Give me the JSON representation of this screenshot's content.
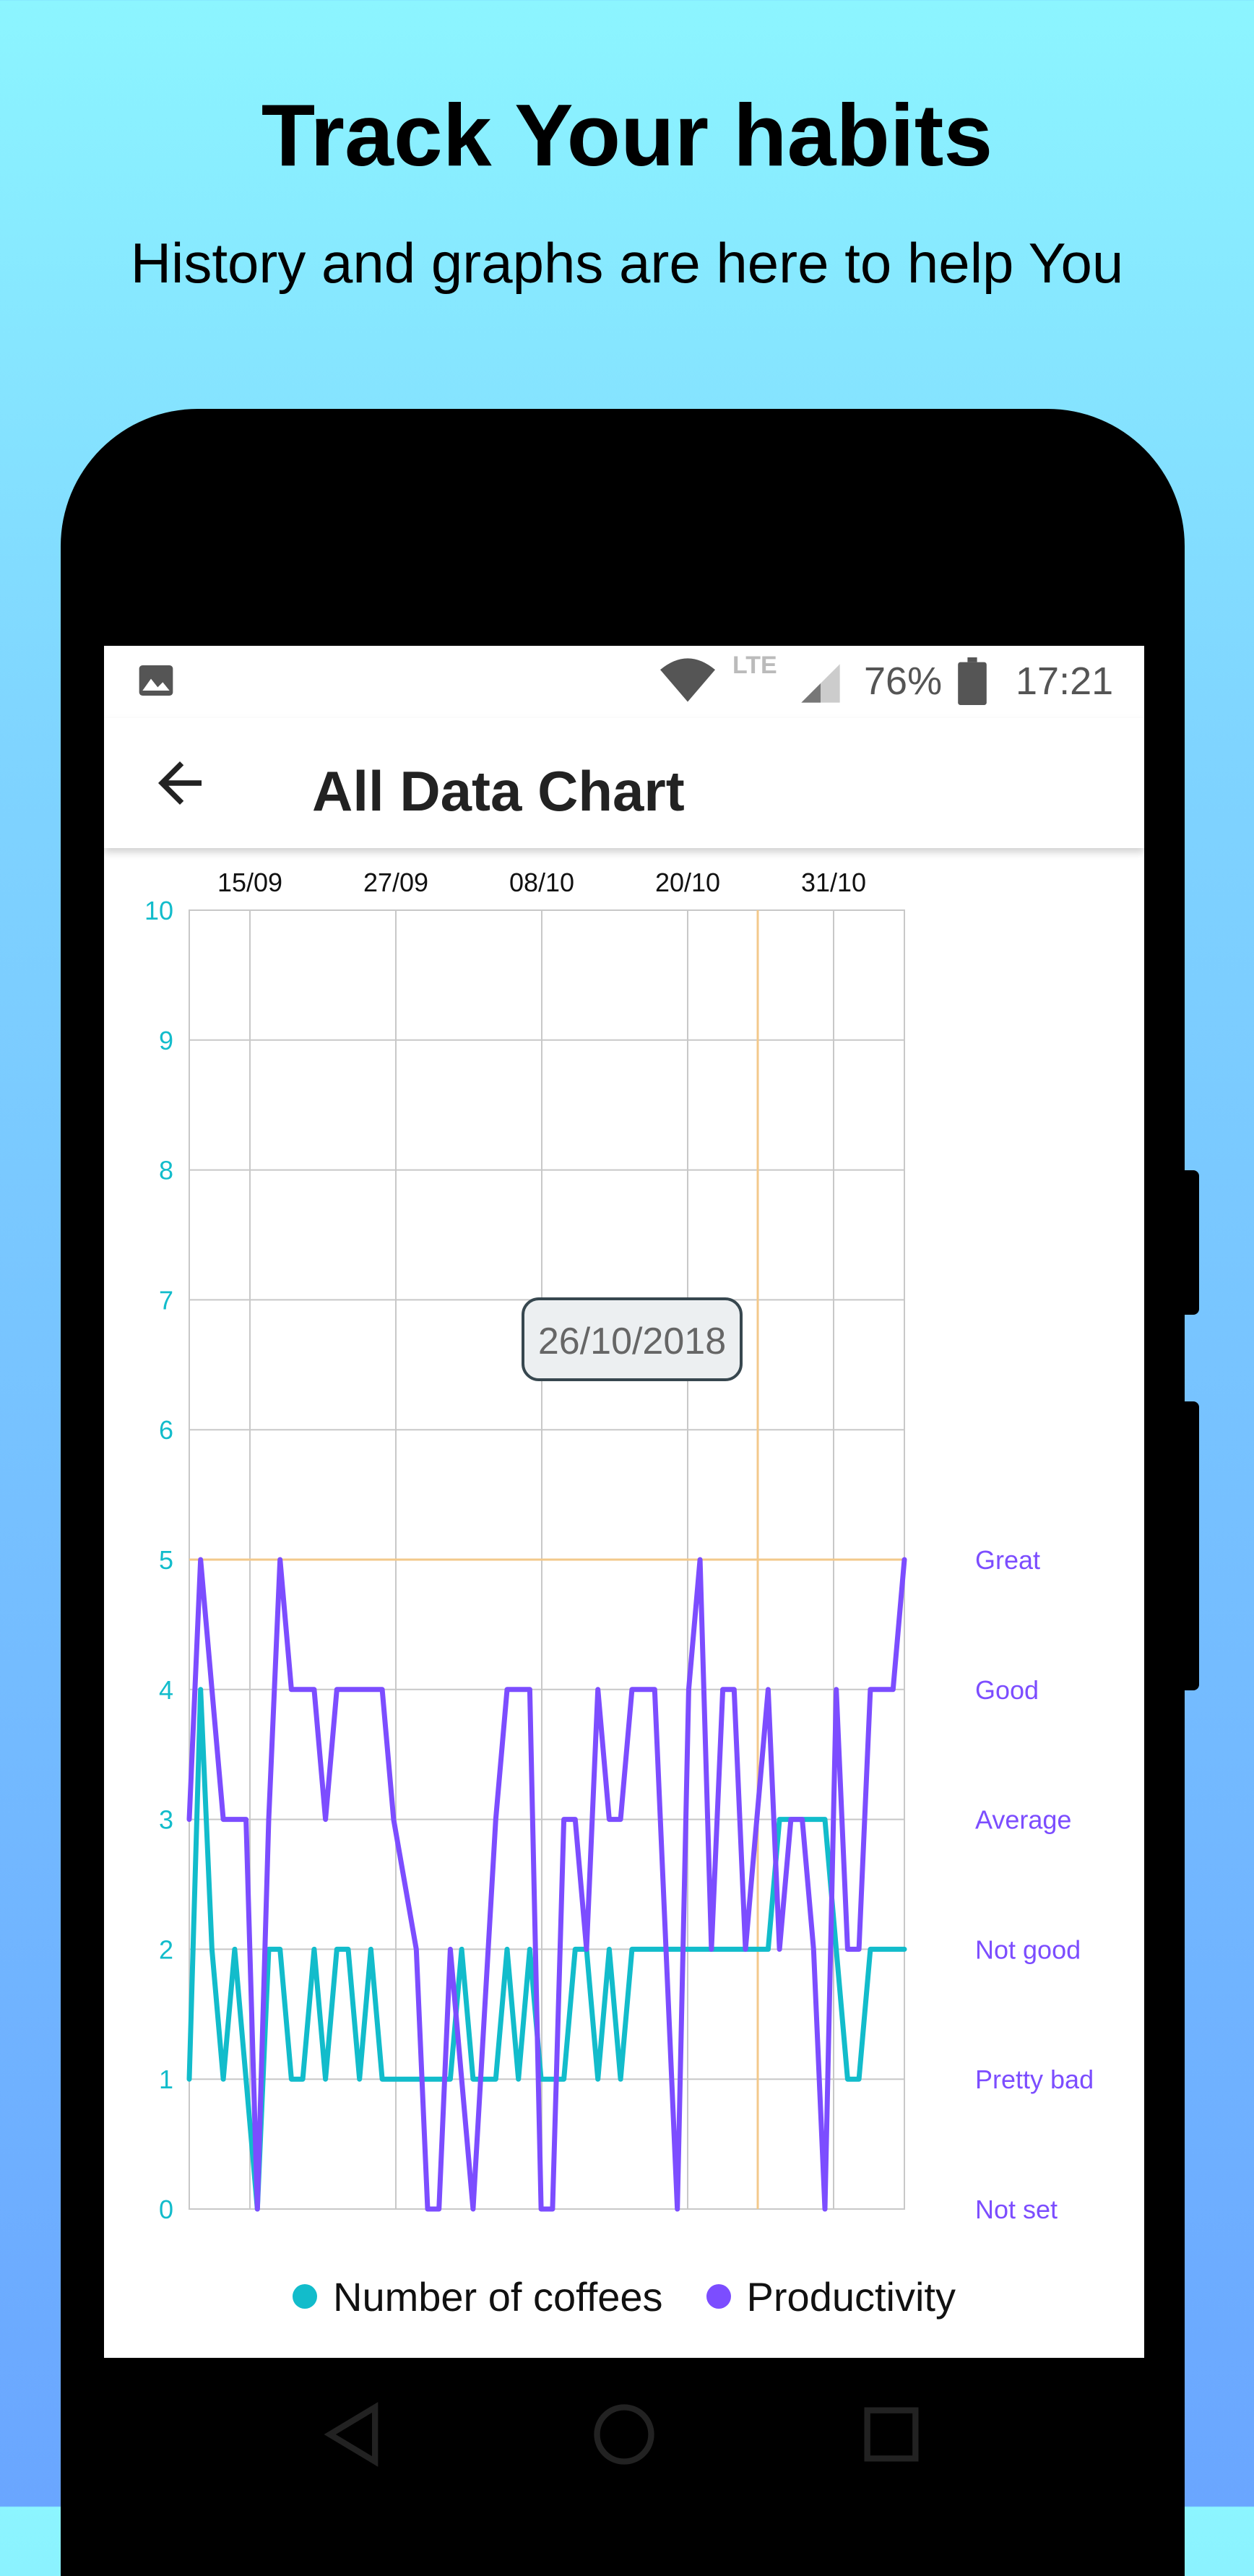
{
  "promo": {
    "title": "Track Your habits",
    "subtitle": "History and graphs are here to help You"
  },
  "status_bar": {
    "network": "LTE",
    "battery": "76%",
    "time": "17:21",
    "icons": [
      "image-icon",
      "wifi-icon",
      "signal-icon",
      "battery-icon"
    ]
  },
  "app_bar": {
    "title": "All Data Chart",
    "back_icon": "arrow-back-icon"
  },
  "tooltip": {
    "text": "26/10/2018"
  },
  "legend": {
    "coffees": "Number of coffees",
    "productivity": "Productivity"
  },
  "colors": {
    "coffees": "#12bccb",
    "productivity": "#7c4dff",
    "grid": "#c8c8c8",
    "highlight": "#f3c98b"
  },
  "chart_data": {
    "type": "line",
    "x_tick_labels": [
      "15/09",
      "27/09",
      "08/10",
      "20/10",
      "31/10"
    ],
    "left_axis": {
      "ticks": [
        "0",
        "1",
        "2",
        "3",
        "4",
        "5",
        "6",
        "7",
        "8",
        "9",
        "10"
      ],
      "range": [
        0,
        10
      ]
    },
    "right_axis": {
      "ticks": [
        "Not set",
        "Pretty bad",
        "Not good",
        "Average",
        "Good",
        "Great"
      ]
    },
    "highlight": {
      "date": "26/10",
      "value": 5
    },
    "x_range": [
      0,
      63
    ],
    "series": [
      {
        "name": "Number of coffees",
        "values": [
          1,
          4,
          2,
          1,
          2,
          1,
          0,
          2,
          2,
          1,
          1,
          2,
          1,
          2,
          2,
          1,
          2,
          1,
          1,
          1,
          1,
          1,
          1,
          1,
          2,
          1,
          1,
          1,
          2,
          1,
          2,
          1,
          1,
          1,
          2,
          2,
          1,
          2,
          1,
          2,
          2,
          2,
          2,
          2,
          2,
          2,
          2,
          2,
          2,
          2,
          2,
          2,
          3,
          3,
          3,
          3,
          3,
          2,
          1,
          1,
          2,
          2,
          2,
          2
        ]
      },
      {
        "name": "Productivity",
        "values": [
          3,
          5,
          4,
          3,
          3,
          3,
          0,
          3,
          5,
          4,
          4,
          4,
          3,
          4,
          4,
          4,
          4,
          4,
          3,
          2.5,
          2,
          0,
          0,
          2,
          1,
          0,
          1.5,
          3,
          4,
          4,
          4,
          0,
          0,
          3,
          3,
          2,
          4,
          3,
          3,
          4,
          4,
          4,
          2,
          0,
          4,
          5,
          2,
          4,
          4,
          2,
          3,
          4,
          2,
          3,
          3,
          2,
          0,
          4,
          2,
          2,
          4,
          4,
          4,
          5
        ]
      }
    ]
  }
}
